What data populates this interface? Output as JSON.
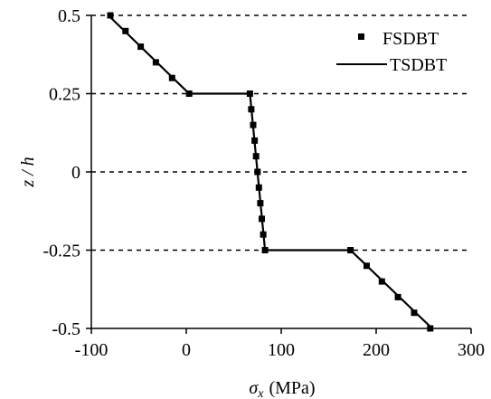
{
  "chart_data": {
    "type": "line",
    "xlabel_symbol": "σ",
    "xlabel_subscript": "x",
    "xlabel_unit": "(MPa)",
    "ylabel": "z / h",
    "xlim": [
      -100,
      300
    ],
    "ylim": [
      -0.5,
      0.5
    ],
    "x_ticks": [
      -100,
      0,
      100,
      200,
      300
    ],
    "y_ticks": [
      -0.5,
      -0.25,
      0,
      0.25,
      0.5
    ],
    "x_tick_labels": [
      "-100",
      "0",
      "100",
      "200",
      "300"
    ],
    "y_tick_labels": [
      "-0.5",
      "-0.25",
      "0",
      "0.25",
      "0.5"
    ],
    "grid": "horizontal-dashed",
    "legend_position": "top-right",
    "series": [
      {
        "name": "FSDBT",
        "style": "markers",
        "color": "#000000",
        "points": [
          {
            "x": -80,
            "y": 0.5
          },
          {
            "x": -64,
            "y": 0.45
          },
          {
            "x": -48,
            "y": 0.4
          },
          {
            "x": -32,
            "y": 0.35
          },
          {
            "x": -15,
            "y": 0.3
          },
          {
            "x": 3,
            "y": 0.25
          },
          {
            "x": 67,
            "y": 0.25
          },
          {
            "x": 68.5,
            "y": 0.2
          },
          {
            "x": 70.5,
            "y": 0.15
          },
          {
            "x": 72,
            "y": 0.1
          },
          {
            "x": 73.5,
            "y": 0.05
          },
          {
            "x": 75,
            "y": 0
          },
          {
            "x": 76.5,
            "y": -0.05
          },
          {
            "x": 78,
            "y": -0.1
          },
          {
            "x": 79.5,
            "y": -0.15
          },
          {
            "x": 81,
            "y": -0.2
          },
          {
            "x": 83,
            "y": -0.25
          },
          {
            "x": 173,
            "y": -0.25
          },
          {
            "x": 190,
            "y": -0.3
          },
          {
            "x": 206,
            "y": -0.35
          },
          {
            "x": 223,
            "y": -0.4
          },
          {
            "x": 240,
            "y": -0.45
          },
          {
            "x": 257,
            "y": -0.5
          }
        ]
      },
      {
        "name": "TSDBT",
        "style": "solid-line",
        "color": "#000000",
        "points": [
          {
            "x": -82,
            "y": 0.5
          },
          {
            "x": 3,
            "y": 0.25
          },
          {
            "x": 67,
            "y": 0.25
          },
          {
            "x": 83,
            "y": -0.25
          },
          {
            "x": 173,
            "y": -0.25
          },
          {
            "x": 259,
            "y": -0.5
          }
        ]
      }
    ]
  }
}
